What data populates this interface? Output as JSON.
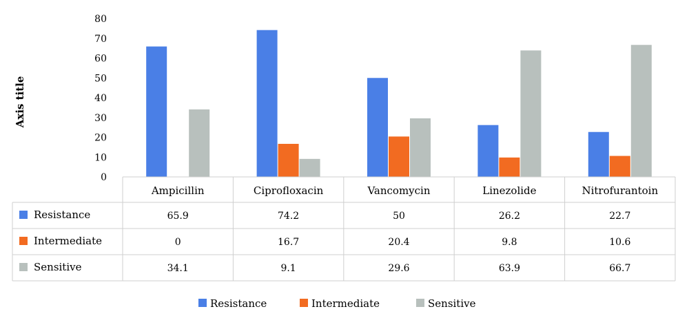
{
  "chart_data": {
    "type": "bar",
    "ylabel": "Axis title",
    "ylim": [
      0,
      80
    ],
    "yticks": [
      0,
      10,
      20,
      30,
      40,
      50,
      60,
      70,
      80
    ],
    "categories": [
      "Ampicillin",
      "Ciprofloxacin",
      "Vancomycin",
      "Linezolide",
      "Nitrofurantoin"
    ],
    "series": [
      {
        "name": "Resistance",
        "color": "#4a7fe6",
        "values": [
          65.9,
          74.2,
          50,
          26.2,
          22.7
        ],
        "labels": [
          "65.9",
          "74.2",
          "50",
          "26.2",
          "22.7"
        ]
      },
      {
        "name": "Intermediate",
        "color": "#f26b21",
        "values": [
          0,
          16.7,
          20.4,
          9.8,
          10.6
        ],
        "labels": [
          "0",
          "16.7",
          "20.4",
          "9.8",
          "10.6"
        ]
      },
      {
        "name": "Sensitive",
        "color": "#b8c0bd",
        "values": [
          34.1,
          9.1,
          29.6,
          63.9,
          66.7
        ],
        "labels": [
          "34.1",
          "9.1",
          "29.6",
          "63.9",
          "66.7"
        ]
      }
    ],
    "grid": false,
    "data_table": true,
    "legend": "bottom"
  }
}
